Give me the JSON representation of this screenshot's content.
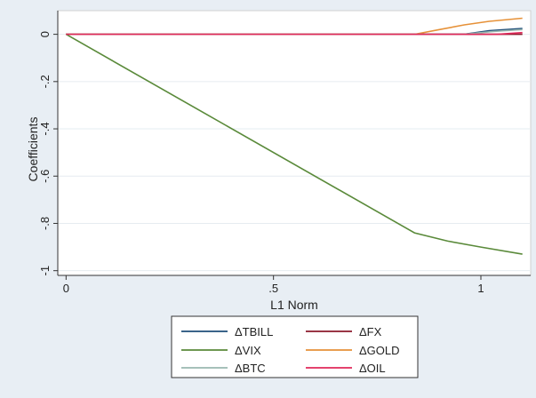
{
  "chart_data": {
    "type": "line",
    "title": "",
    "xlabel": "L1 Norm",
    "ylabel": "Coefficients",
    "xlim": [
      -0.02,
      1.12
    ],
    "ylim": [
      -1.02,
      0.1
    ],
    "xticks": [
      {
        "value": 0,
        "label": "0"
      },
      {
        "value": 0.5,
        "label": ".5"
      },
      {
        "value": 1,
        "label": "1"
      }
    ],
    "yticks": [
      {
        "value": 0,
        "label": "0"
      },
      {
        "value": -0.2,
        "label": "-.2"
      },
      {
        "value": -0.4,
        "label": "-.4"
      },
      {
        "value": -0.6,
        "label": "-.6"
      },
      {
        "value": -0.8,
        "label": "-.8"
      },
      {
        "value": -1,
        "label": "-1"
      }
    ],
    "grid": true,
    "legend_position": "bottom",
    "series": [
      {
        "name": "ΔTBILL",
        "color": "#1f4e79",
        "points": [
          [
            0,
            0
          ],
          [
            0.96,
            0
          ],
          [
            1.02,
            0.015
          ],
          [
            1.1,
            0.025
          ]
        ]
      },
      {
        "name": "ΔFX",
        "color": "#8b1a2b",
        "points": [
          [
            0,
            0
          ],
          [
            1.1,
            0
          ]
        ]
      },
      {
        "name": "ΔVIX",
        "color": "#5a8a3a",
        "points": [
          [
            0,
            0
          ],
          [
            0.84,
            -0.84
          ],
          [
            0.92,
            -0.875
          ],
          [
            1.0,
            -0.9
          ],
          [
            1.1,
            -0.93
          ]
        ]
      },
      {
        "name": "ΔGOLD",
        "color": "#e69138",
        "points": [
          [
            0,
            0
          ],
          [
            0.84,
            0
          ],
          [
            0.9,
            0.02
          ],
          [
            0.96,
            0.04
          ],
          [
            1.02,
            0.055
          ],
          [
            1.1,
            0.068
          ]
        ]
      },
      {
        "name": "ΔBTC",
        "color": "#9ab8b0",
        "points": [
          [
            0,
            0
          ],
          [
            0.96,
            0
          ],
          [
            1.03,
            0.012
          ],
          [
            1.1,
            0.02
          ]
        ]
      },
      {
        "name": "ΔOIL",
        "color": "#e0285a",
        "points": [
          [
            0,
            0
          ],
          [
            1.04,
            0
          ],
          [
            1.1,
            0.007
          ]
        ]
      }
    ]
  }
}
